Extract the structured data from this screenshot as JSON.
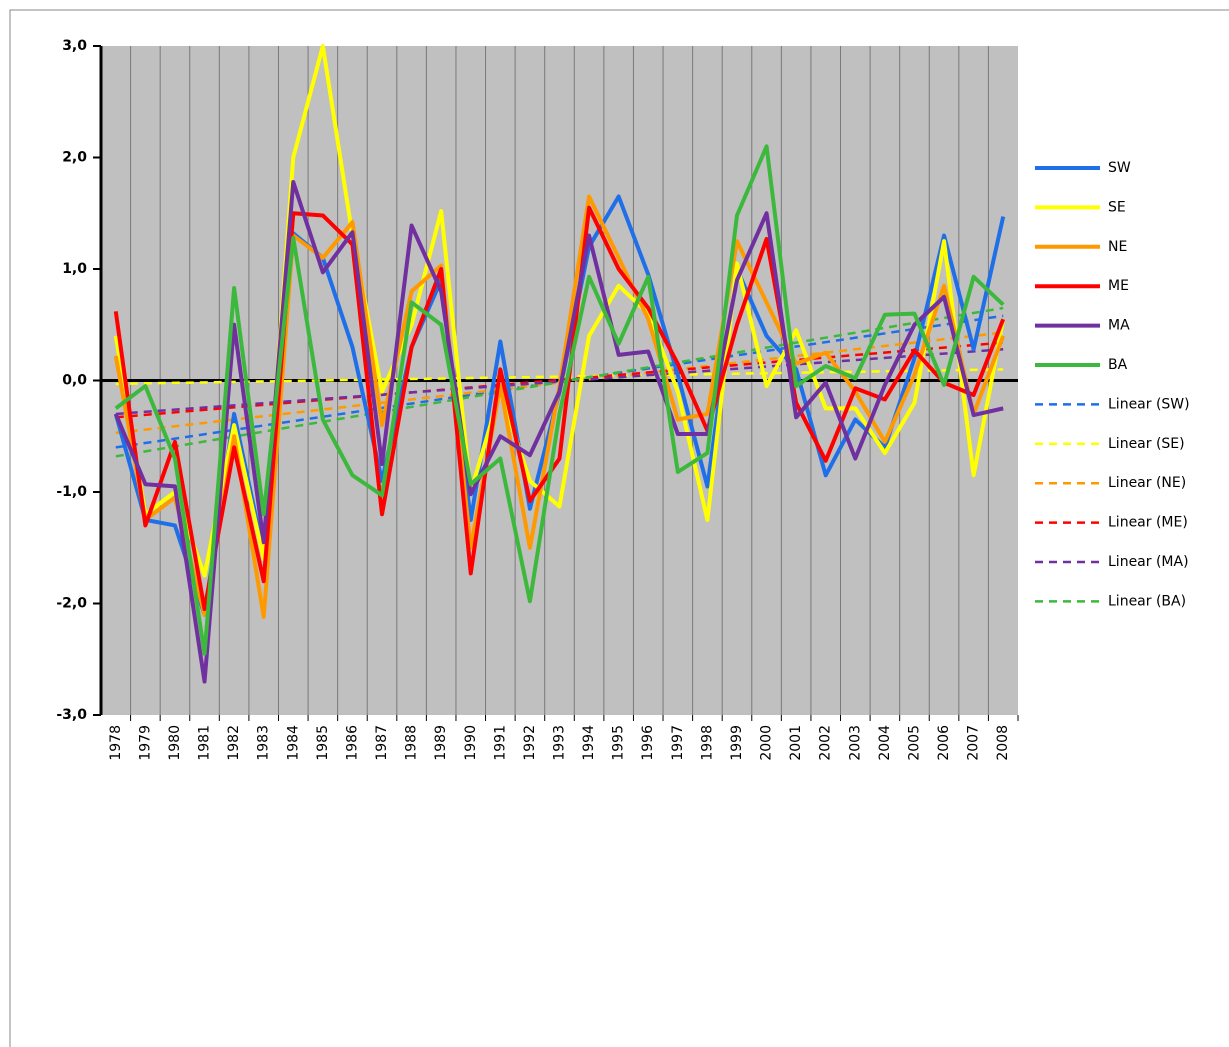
{
  "chart_data": {
    "type": "line",
    "categories": [
      "1978",
      "1979",
      "1980",
      "1981",
      "1982",
      "1983",
      "1984",
      "1985",
      "1986",
      "1987",
      "1988",
      "1989",
      "1990",
      "1991",
      "1992",
      "1993",
      "1994",
      "1995",
      "1996",
      "1997",
      "1998",
      "1999",
      "2000",
      "2001",
      "2002",
      "2003",
      "2004",
      "2005",
      "2006",
      "2007",
      "2008"
    ],
    "ylim": [
      -3,
      3
    ],
    "yticks": [
      {
        "value": -3,
        "label": "-3,0"
      },
      {
        "value": -2,
        "label": "-2,0"
      },
      {
        "value": -1,
        "label": "-1,0"
      },
      {
        "value": 0,
        "label": "0,0"
      },
      {
        "value": 1,
        "label": "1,0"
      },
      {
        "value": 2,
        "label": "2,0"
      },
      {
        "value": 3,
        "label": "3,0"
      }
    ],
    "series": [
      {
        "name": "SW",
        "color": "#1f6fe8",
        "values": [
          -0.3,
          -1.25,
          -1.3,
          -2.1,
          -0.3,
          -1.55,
          1.32,
          1.1,
          0.3,
          -0.9,
          0.3,
          0.9,
          -1.25,
          0.35,
          -1.15,
          -0.1,
          1.2,
          1.65,
          0.95,
          0.05,
          -0.95,
          1.0,
          0.4,
          0.1,
          -0.85,
          -0.35,
          -0.6,
          0.2,
          1.3,
          0.28,
          1.47
        ]
      },
      {
        "name": "SE",
        "color": "#ffff00",
        "values": [
          0.4,
          -1.2,
          -1.0,
          -1.75,
          -0.4,
          -1.6,
          2.0,
          3.0,
          1.3,
          -0.1,
          0.5,
          1.52,
          -1.0,
          -0.1,
          -0.9,
          -1.13,
          0.4,
          0.85,
          0.6,
          -0.1,
          -1.25,
          1.05,
          -0.05,
          0.45,
          -0.25,
          -0.25,
          -0.65,
          -0.2,
          1.25,
          -0.85,
          0.55
        ]
      },
      {
        "name": "NE",
        "color": "#ff9900",
        "values": [
          0.22,
          -1.25,
          -1.05,
          -2.1,
          -0.5,
          -2.12,
          1.3,
          1.1,
          1.42,
          -0.4,
          0.8,
          1.03,
          -1.5,
          -0.05,
          -1.5,
          -0.05,
          1.65,
          1.1,
          0.55,
          -0.35,
          -0.3,
          1.25,
          0.7,
          0.15,
          0.25,
          -0.1,
          -0.55,
          0.05,
          0.85,
          -0.3,
          0.4
        ]
      },
      {
        "name": "ME",
        "color": "#ff0000",
        "values": [
          0.62,
          -1.3,
          -0.55,
          -2.05,
          -0.6,
          -1.8,
          1.5,
          1.48,
          1.22,
          -1.2,
          0.3,
          1.0,
          -1.73,
          0.1,
          -1.08,
          -0.7,
          1.55,
          1.0,
          0.65,
          0.15,
          -0.45,
          0.5,
          1.27,
          -0.2,
          -0.72,
          -0.07,
          -0.17,
          0.27,
          -0.02,
          -0.13,
          0.55
        ]
      },
      {
        "name": "MA",
        "color": "#7030a0",
        "values": [
          -0.3,
          -0.93,
          -0.95,
          -2.7,
          0.5,
          -1.45,
          1.78,
          0.97,
          1.33,
          -0.75,
          1.39,
          0.8,
          -1.02,
          -0.5,
          -0.67,
          -0.1,
          1.3,
          0.23,
          0.26,
          -0.48,
          -0.48,
          0.9,
          1.5,
          -0.33,
          -0.02,
          -0.7,
          -0.04,
          0.5,
          0.75,
          -0.31,
          -0.25
        ]
      },
      {
        "name": "BA",
        "color": "#3cb93c",
        "values": [
          -0.25,
          -0.05,
          -0.7,
          -2.45,
          0.83,
          -1.2,
          1.28,
          -0.35,
          -0.85,
          -1.03,
          0.7,
          0.5,
          -0.93,
          -0.7,
          -1.98,
          -0.3,
          0.93,
          0.33,
          0.93,
          -0.82,
          -0.65,
          1.48,
          2.1,
          -0.05,
          0.13,
          0.02,
          0.59,
          0.6,
          -0.04,
          0.93,
          0.68
        ]
      }
    ],
    "trendlines": [
      {
        "name": "Linear (SW)",
        "color": "#1f6fe8",
        "values": [
          -0.6,
          0.58
        ]
      },
      {
        "name": "Linear (SE)",
        "color": "#ffff00",
        "values": [
          -0.03,
          0.1
        ]
      },
      {
        "name": "Linear (NE)",
        "color": "#ff9900",
        "values": [
          -0.47,
          0.43
        ]
      },
      {
        "name": "Linear (ME)",
        "color": "#ff0000",
        "values": [
          -0.33,
          0.34
        ]
      },
      {
        "name": "Linear (MA)",
        "color": "#7030a0",
        "values": [
          -0.3,
          0.28
        ]
      },
      {
        "name": "Linear (BA)",
        "color": "#3cb93c",
        "values": [
          -0.68,
          0.65
        ]
      }
    ]
  }
}
